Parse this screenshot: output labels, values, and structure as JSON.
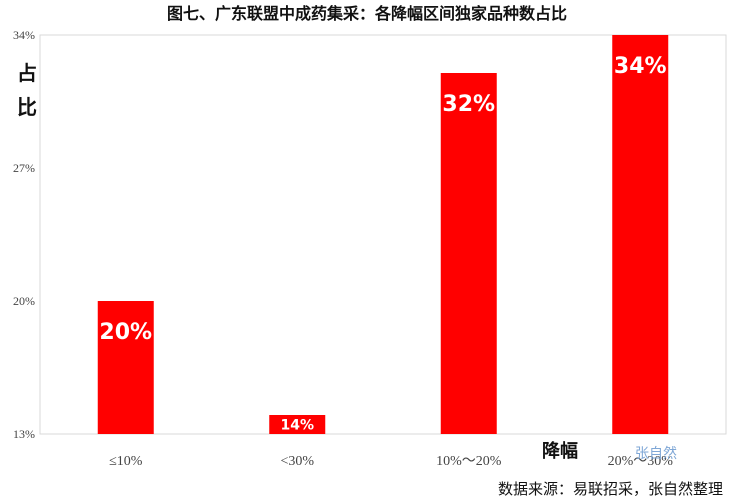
{
  "chart_data": {
    "type": "bar",
    "title": "图七、广东联盟中成药集采：各降幅区间独家品种数占比",
    "ylabel": "占比",
    "xlabel": "降幅",
    "categories": [
      "≤10%",
      "<30%",
      "10%～20%",
      "20%～30%"
    ],
    "values": [
      20,
      14,
      32,
      34
    ],
    "data_labels": [
      "20%",
      "14%",
      "32%",
      "34%"
    ],
    "y_ticks": [
      "13%",
      "20%",
      "27%",
      "34%"
    ],
    "ylim": [
      13,
      34
    ],
    "grid": false,
    "legend": "none",
    "bar_color": "#ff0000"
  },
  "source": "数据来源：易联招采，张自然整理",
  "watermark": "张自然"
}
